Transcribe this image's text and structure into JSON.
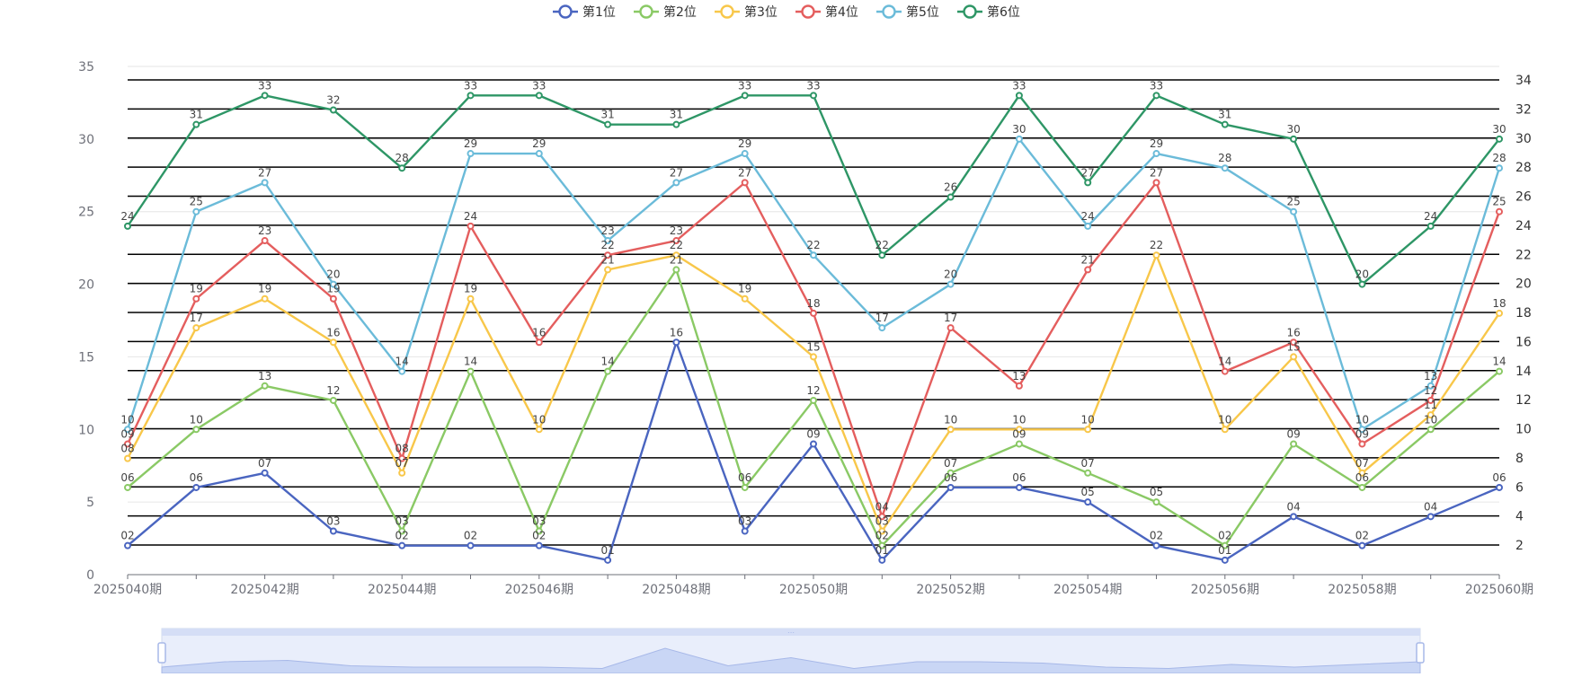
{
  "chart_data": {
    "type": "line",
    "x": [
      "2025040期",
      "2025041期",
      "2025042期",
      "2025043期",
      "2025044期",
      "2025045期",
      "2025046期",
      "2025047期",
      "2025048期",
      "2025049期",
      "2025050期",
      "2025051期",
      "2025052期",
      "2025053期",
      "2025054期",
      "2025055期",
      "2025056期",
      "2025057期",
      "2025058期",
      "2025059期",
      "2025060期"
    ],
    "x_tick_labels": [
      "2025040期",
      "2025042期",
      "2025044期",
      "2025046期",
      "2025048期",
      "2025050期",
      "2025052期",
      "2025054期",
      "2025056期",
      "2025058期",
      "2025060期"
    ],
    "ylim_left": [
      0,
      35
    ],
    "yticks_left": [
      0,
      5,
      10,
      15,
      20,
      25,
      30,
      35
    ],
    "yticks_right": [
      2,
      4,
      6,
      8,
      10,
      12,
      14,
      16,
      18,
      20,
      22,
      24,
      26,
      28,
      30,
      32,
      34
    ],
    "legend_position": "top-center",
    "series": [
      {
        "name": "第1位",
        "color": "#4a65c0",
        "values": [
          2,
          6,
          7,
          3,
          2,
          2,
          2,
          1,
          16,
          3,
          9,
          1,
          6,
          6,
          5,
          2,
          1,
          4,
          2,
          4,
          6
        ]
      },
      {
        "name": "第2位",
        "color": "#8ac965",
        "values": [
          6,
          10,
          13,
          12,
          3,
          14,
          3,
          14,
          21,
          6,
          12,
          2,
          7,
          9,
          7,
          5,
          2,
          9,
          6,
          10,
          14
        ]
      },
      {
        "name": "第3位",
        "color": "#f8c74a",
        "values": [
          8,
          17,
          19,
          16,
          7,
          19,
          10,
          21,
          22,
          19,
          15,
          3,
          10,
          10,
          10,
          22,
          10,
          15,
          7,
          11,
          18
        ]
      },
      {
        "name": "第4位",
        "color": "#e45e5e",
        "values": [
          9,
          19,
          23,
          19,
          8,
          24,
          16,
          22,
          23,
          27,
          18,
          4,
          17,
          13,
          21,
          27,
          14,
          16,
          9,
          12,
          25
        ]
      },
      {
        "name": "第5位",
        "color": "#6bbbd9",
        "values": [
          10,
          25,
          27,
          20,
          14,
          29,
          29,
          23,
          27,
          29,
          22,
          17,
          20,
          30,
          24,
          29,
          28,
          25,
          10,
          13,
          28
        ]
      },
      {
        "name": "第6位",
        "color": "#2e9666",
        "values": [
          24,
          31,
          33,
          32,
          28,
          33,
          33,
          31,
          31,
          33,
          33,
          22,
          26,
          33,
          27,
          33,
          31,
          30,
          20,
          24,
          30
        ]
      }
    ]
  }
}
